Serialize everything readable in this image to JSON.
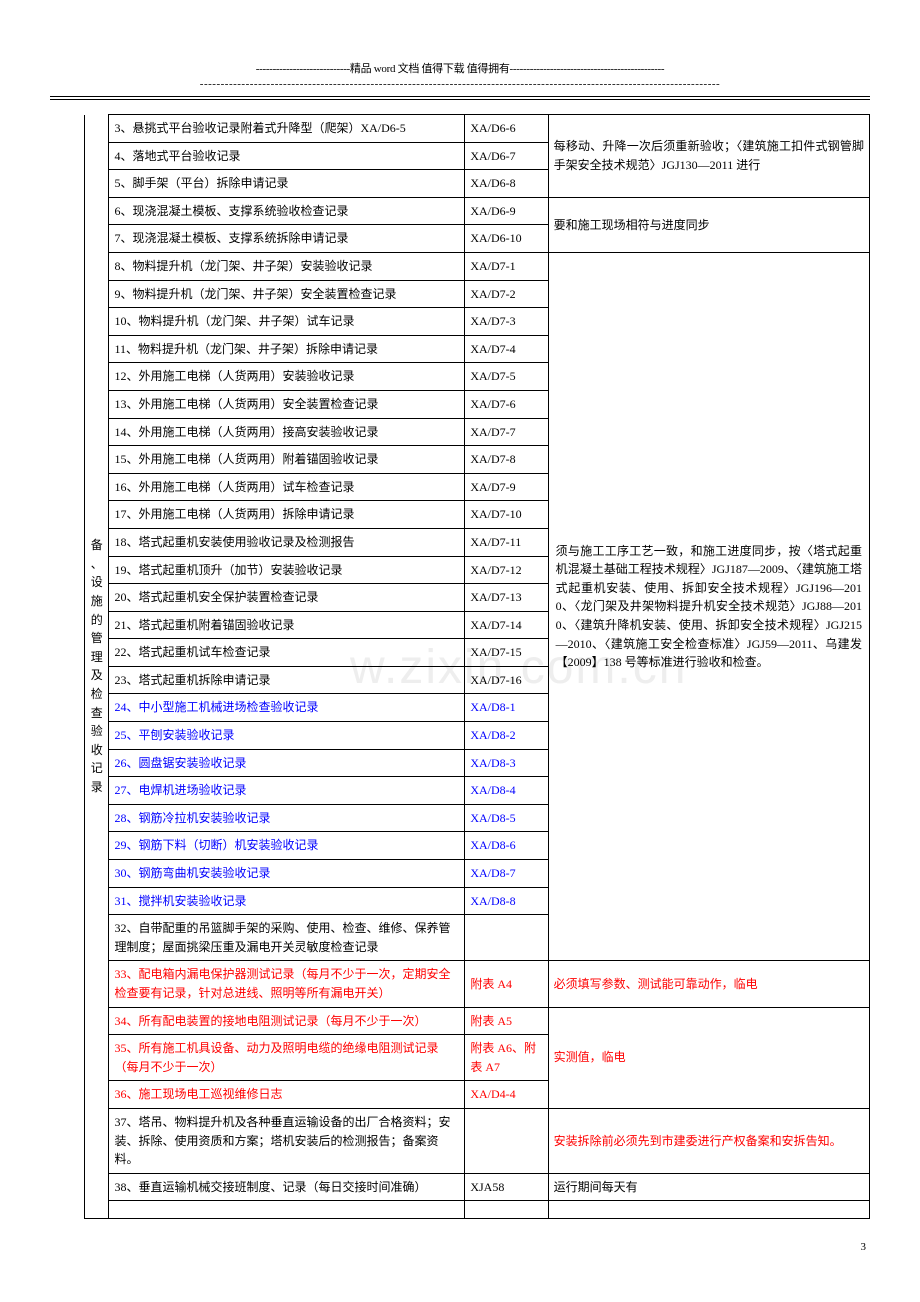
{
  "header": {
    "line1": "----------------------------精品 word 文档  值得下载  值得拥有----------------------------------------------",
    "line2": "-----------------------------------------------------------------------------------------------------------------------------"
  },
  "watermark": "w.zixin.com.cn",
  "vertical_label": "备、设施的管理及检查验收记录",
  "columns": {
    "spacer_w": 34,
    "label_w": 24,
    "desc_w": 350,
    "code_w": 82,
    "note_w": 316
  },
  "colors": {
    "blue": "#0000ff",
    "red": "#ff0000",
    "black": "#000000",
    "border": "#000000"
  },
  "note_blocks": {
    "n1": "每移动、升降一次后须重新验收；〈建筑施工扣件式钢管脚手架安全技术规范〉JGJ130—2011 进行",
    "n2": "要和施工现场相符与进度同步",
    "n3": "须与施工工序工艺一致，和施工进度同步，按〈塔式起重机混凝土基础工程技术规程〉JGJ187—2009、〈建筑施工塔式起重机安装、使用、拆卸安全技术规程〉JGJ196—2010、〈龙门架及井架物料提升机安全技术规范〉JGJ88—2010、〈建筑升降机安装、使用、拆卸安全技术规程〉JGJ215—2010、〈建筑施工安全检查标准〉JGJ59—2011、乌建发【2009】138 号等标准进行验收和检查。",
    "n4": "必须填写参数、测试能可靠动作，临电",
    "n5": "实测值，临电",
    "n6": "安装拆除前必须先到市建委进行产权备案和安拆告知。",
    "n7": "运行期间每天有"
  },
  "rows": [
    {
      "desc": "3、悬挑式平台验收记录附着式升降型（爬架）XA/D6-5",
      "code": "XA/D6-6",
      "color": "black",
      "note_ref": "n1",
      "note_span": 3
    },
    {
      "desc": "4、落地式平台验收记录",
      "code": "XA/D6-7",
      "color": "black"
    },
    {
      "desc": "5、脚手架（平台）拆除申请记录",
      "code": "XA/D6-8",
      "color": "black"
    },
    {
      "desc": "6、现浇混凝土模板、支撑系统验收检查记录",
      "code": "XA/D6-9",
      "color": "black",
      "note_ref": "n2",
      "note_span": 2,
      "note_center": true
    },
    {
      "desc": "7、现浇混凝土模板、支撑系统拆除申请记录",
      "code": "XA/D6-10",
      "color": "black"
    },
    {
      "desc": "8、物料提升机（龙门架、井子架）安装验收记录",
      "code": "XA/D7-1",
      "color": "black",
      "note_ref": "n3",
      "note_span": 25
    },
    {
      "desc": "9、物料提升机（龙门架、井子架）安全装置检查记录",
      "code": "XA/D7-2",
      "color": "black"
    },
    {
      "desc": "10、物料提升机（龙门架、井子架）试车记录",
      "code": "XA/D7-3",
      "color": "black"
    },
    {
      "desc": "11、物料提升机（龙门架、井子架）拆除申请记录",
      "code": "XA/D7-4",
      "color": "black"
    },
    {
      "desc": "12、外用施工电梯（人货两用）安装验收记录",
      "code": "XA/D7-5",
      "color": "black"
    },
    {
      "desc": "13、外用施工电梯（人货两用）安全装置检查记录",
      "code": "XA/D7-6",
      "color": "black"
    },
    {
      "desc": "14、外用施工电梯（人货两用）接高安装验收记录",
      "code": "XA/D7-7",
      "color": "black"
    },
    {
      "desc": "15、外用施工电梯（人货两用）附着锚固验收记录",
      "code": "XA/D7-8",
      "color": "black"
    },
    {
      "desc": "16、外用施工电梯（人货两用）试车检查记录",
      "code": "XA/D7-9",
      "color": "black"
    },
    {
      "desc": "17、外用施工电梯（人货两用）拆除申请记录",
      "code": "XA/D7-10",
      "color": "black"
    },
    {
      "desc": "18、塔式起重机安装使用验收记录及检测报告",
      "code": "XA/D7-11",
      "color": "black"
    },
    {
      "desc": "19、塔式起重机顶升（加节）安装验收记录",
      "code": "XA/D7-12",
      "color": "black"
    },
    {
      "desc": "20、塔式起重机安全保护装置检查记录",
      "code": "XA/D7-13",
      "color": "black"
    },
    {
      "desc": "21、塔式起重机附着锚固验收记录",
      "code": "XA/D7-14",
      "color": "black"
    },
    {
      "desc": "22、塔式起重机试车检查记录",
      "code": "XA/D7-15",
      "color": "black"
    },
    {
      "desc": "23、塔式起重机拆除申请记录",
      "code": "XA/D7-16",
      "color": "black"
    },
    {
      "desc": "24、中小型施工机械进场检查验收记录",
      "code": "XA/D8-1",
      "color": "blue"
    },
    {
      "desc": "25、平刨安装验收记录",
      "code": "XA/D8-2",
      "color": "blue"
    },
    {
      "desc": "26、圆盘锯安装验收记录",
      "code": "XA/D8-3",
      "color": "blue"
    },
    {
      "desc": "27、电焊机进场验收记录",
      "code": "XA/D8-4",
      "color": "blue"
    },
    {
      "desc": "28、钢筋冷拉机安装验收记录",
      "code": "XA/D8-5",
      "color": "blue"
    },
    {
      "desc": "29、钢筋下料（切断）机安装验收记录",
      "code": "XA/D8-6",
      "color": "blue"
    },
    {
      "desc": "30、钢筋弯曲机安装验收记录",
      "code": "XA/D8-7",
      "color": "blue"
    },
    {
      "desc": "31、搅拌机安装验收记录",
      "code": "XA/D8-8",
      "color": "blue"
    },
    {
      "desc": "32、自带配重的吊篮脚手架的采购、使用、检查、维修、保养管理制度；屋面挑梁压重及漏电开关灵敏度检查记录",
      "code": "",
      "color": "black"
    },
    {
      "desc": "33、配电箱内漏电保护器测试记录（每月不少于一次，定期安全检查要有记录，针对总进线、照明等所有漏电开关）",
      "code": "附表 A4",
      "color": "red",
      "note_ref": "n4",
      "note_span": 1,
      "note_color": "red"
    },
    {
      "desc": "34、所有配电装置的接地电阻测试记录（每月不少于一次）",
      "code": "附表 A5",
      "color": "red",
      "note_ref": "n5",
      "note_span": 3,
      "note_color": "red"
    },
    {
      "desc": "35、所有施工机具设备、动力及照明电缆的绝缘电阻测试记录（每月不少于一次）",
      "code": "附表 A6、附表 A7",
      "color": "red"
    },
    {
      "desc": "36、施工现场电工巡视维修日志",
      "code": "XA/D4-4",
      "color": "red"
    },
    {
      "desc": "37、塔吊、物料提升机及各种垂直运输设备的出厂合格资料；安装、拆除、使用资质和方案；塔机安装后的检测报告；备案资料。",
      "code": "",
      "color": "black",
      "note_ref": "n6",
      "note_span": 1,
      "note_color": "red"
    },
    {
      "desc": "38、垂直运输机械交接班制度、记录（每日交接时间准确）",
      "code": "XJA58",
      "color": "black",
      "note_ref": "n7",
      "note_span": 1,
      "note_center": true
    }
  ],
  "page_number": "3"
}
